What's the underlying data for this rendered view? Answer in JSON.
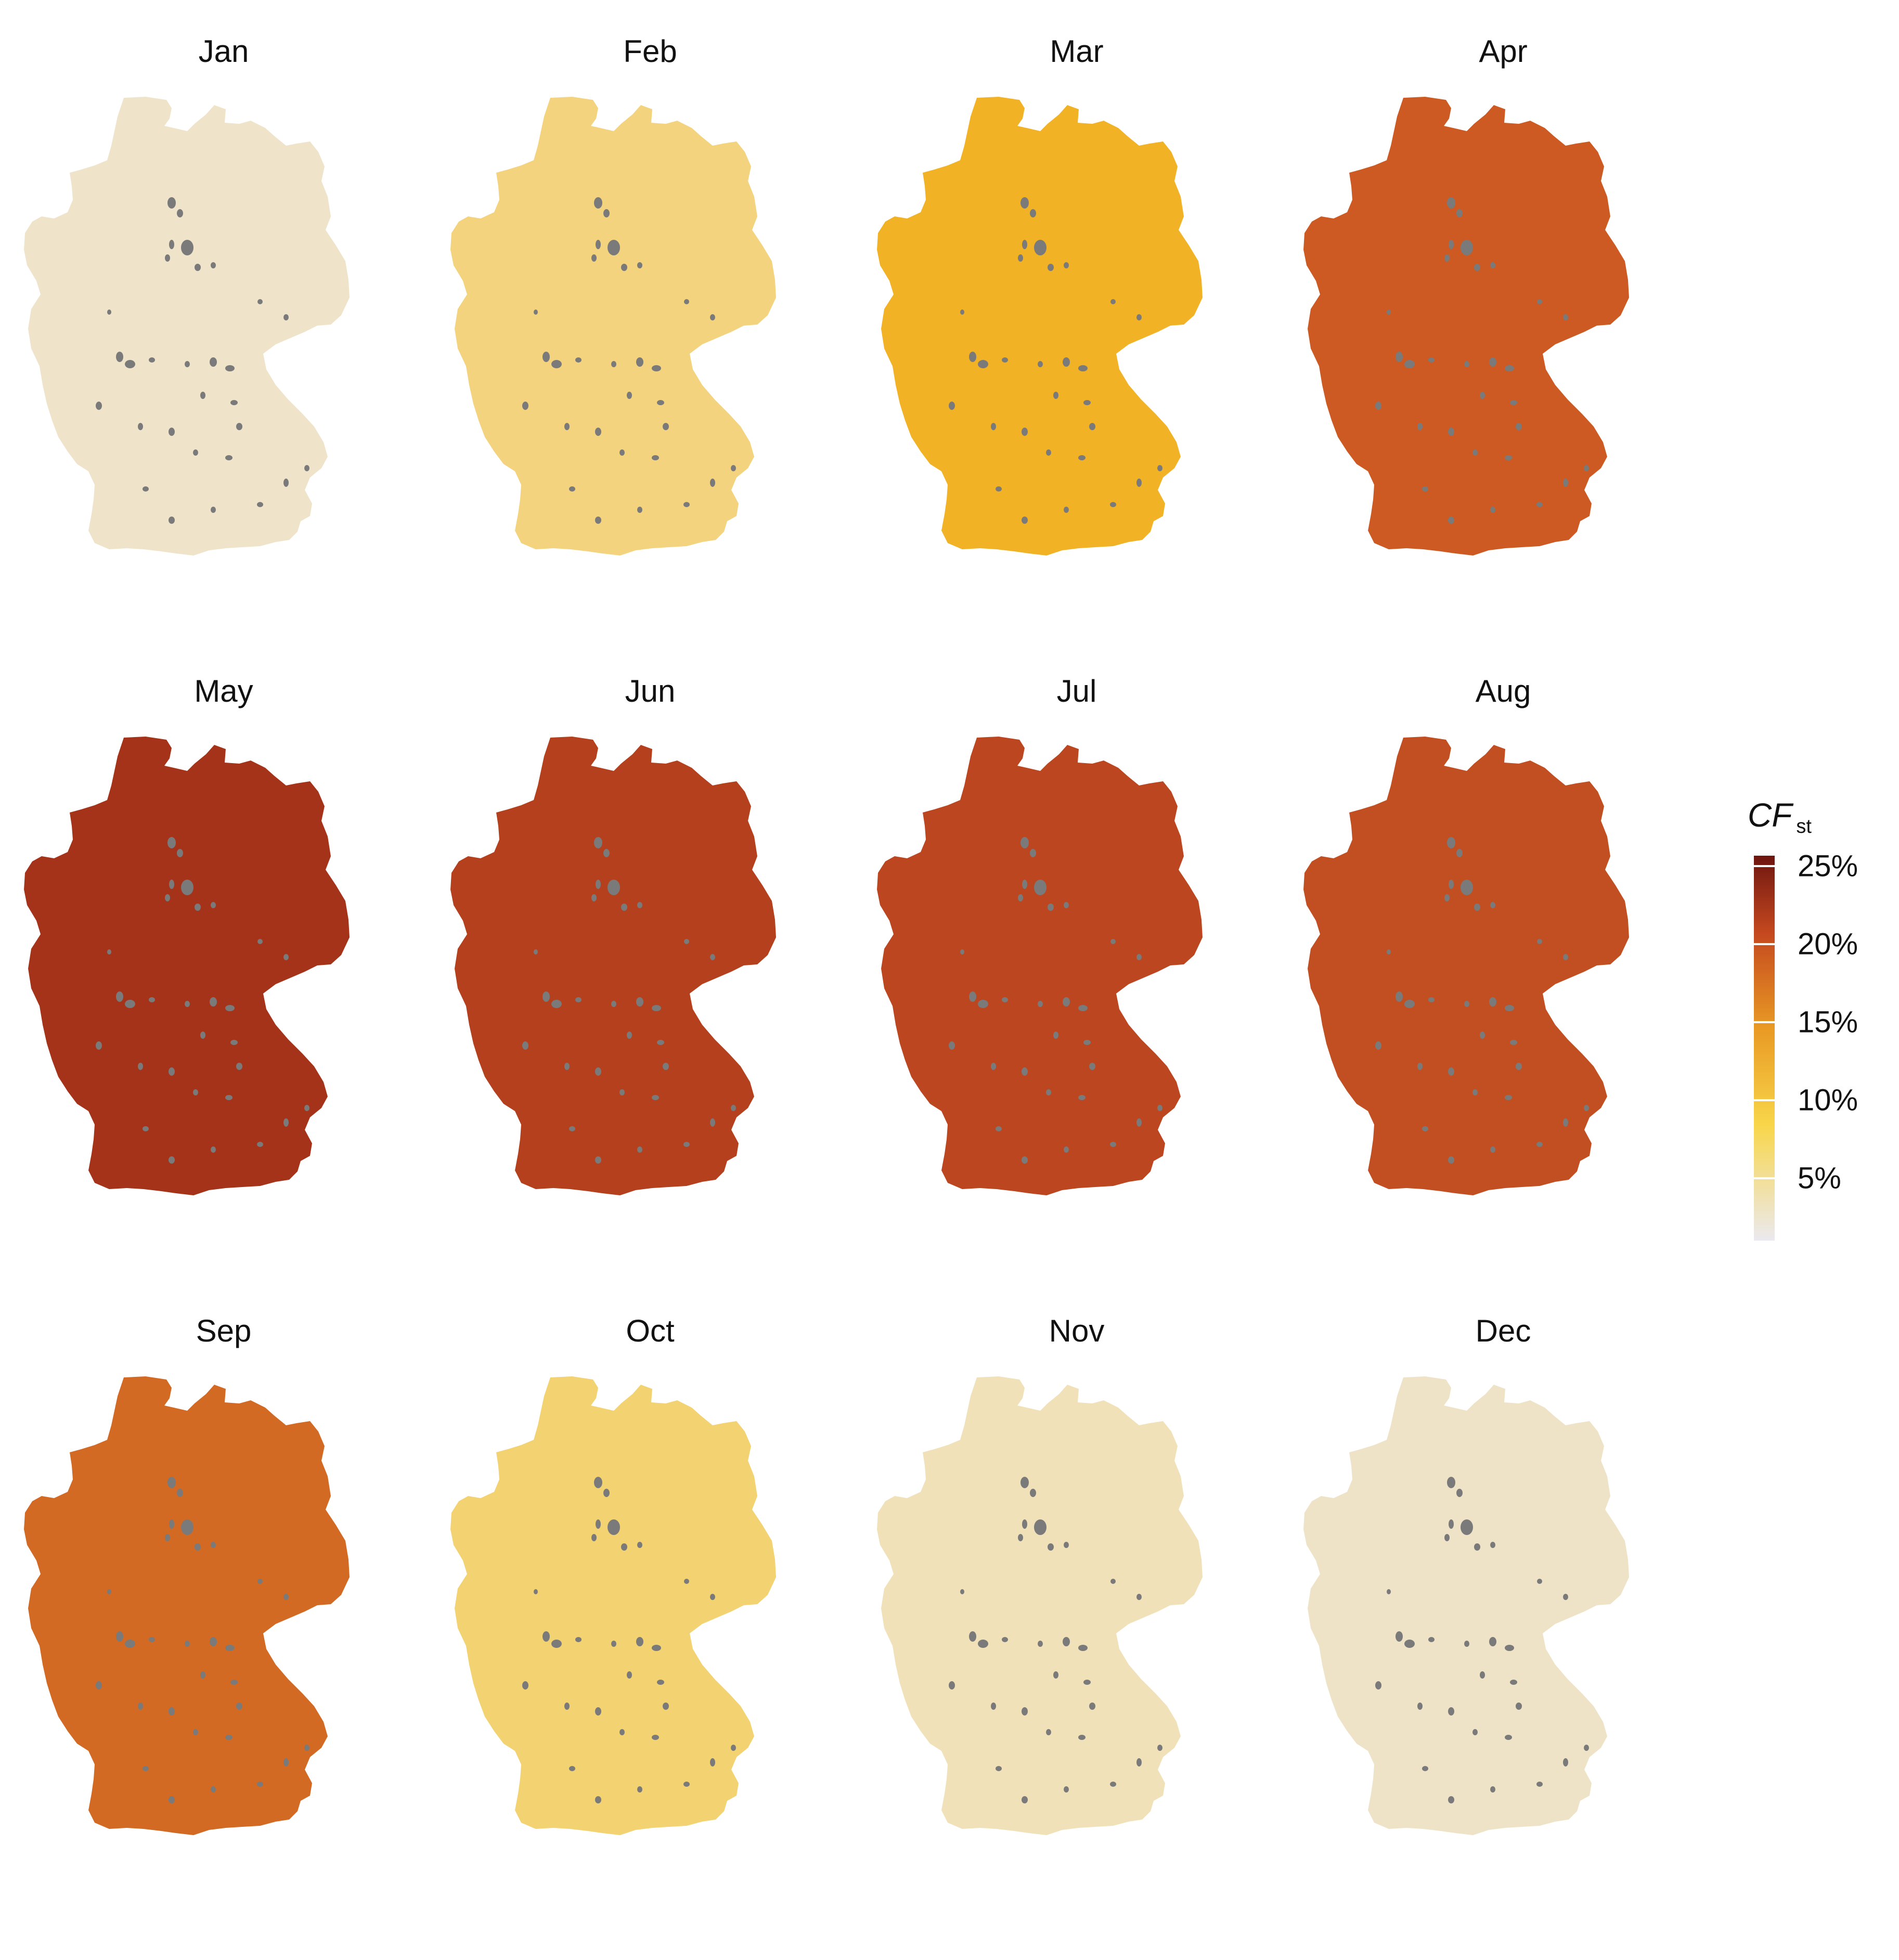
{
  "figure": {
    "panels": [
      {
        "label": "Jan",
        "fill": "#efe4c9"
      },
      {
        "label": "Feb",
        "fill": "#f4d37f"
      },
      {
        "label": "Mar",
        "fill": "#f2b226"
      },
      {
        "label": "Apr",
        "fill": "#cc5a22"
      },
      {
        "label": "May",
        "fill": "#a5331a"
      },
      {
        "label": "Jun",
        "fill": "#b4401d"
      },
      {
        "label": "Jul",
        "fill": "#bb4620"
      },
      {
        "label": "Aug",
        "fill": "#c24f22"
      },
      {
        "label": "Sep",
        "fill": "#d26a24"
      },
      {
        "label": "Oct",
        "fill": "#f3d272"
      },
      {
        "label": "Nov",
        "fill": "#f0e1b9"
      },
      {
        "label": "Dec",
        "fill": "#eee3c6"
      }
    ],
    "excluded_area_color": "#7a7a7a"
  },
  "legend": {
    "title": "CF",
    "title_subscript": "st",
    "ticks": [
      "25%",
      "20%",
      "15%",
      "10%",
      "5%"
    ],
    "colors": {
      "low": "#ebe9f0",
      "yellow": "#f8d64a",
      "orange": "#e99a24",
      "red": "#c4481f",
      "dark": "#6e1510"
    }
  }
}
